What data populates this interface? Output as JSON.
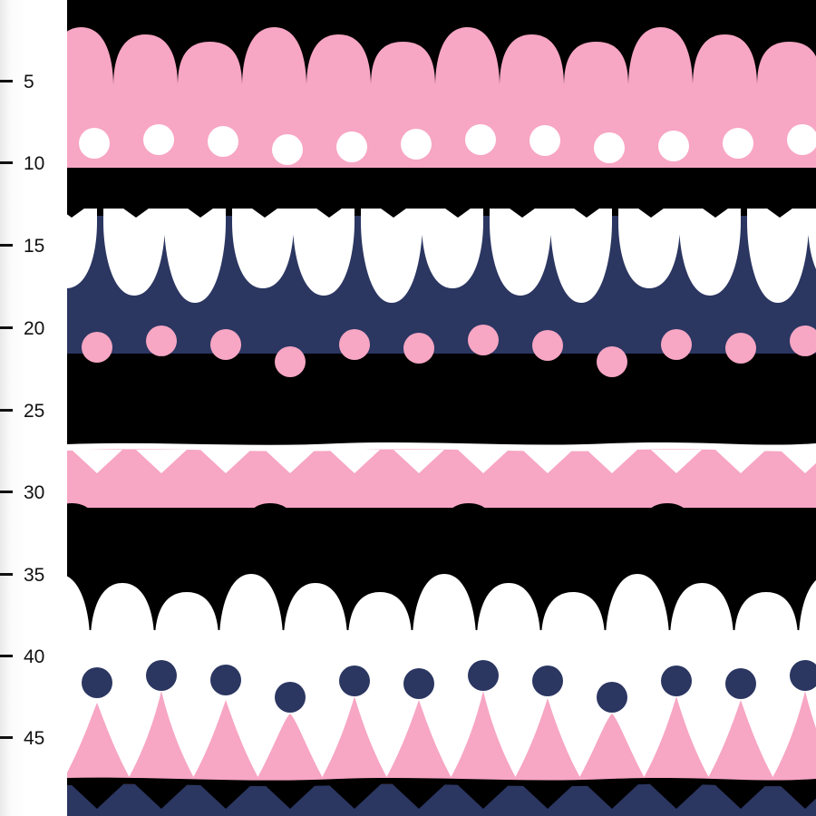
{
  "ruler": {
    "unit_labels": [
      "5",
      "10",
      "15",
      "20",
      "25",
      "30",
      "35",
      "40",
      "45"
    ]
  },
  "pattern": {
    "colors": {
      "pink": "#f7a6c3",
      "navy": "#2b3661",
      "black": "#000000",
      "white": "#ffffff"
    },
    "bands_top_to_bottom": [
      "pink-scallops-on-black",
      "white-dots-on-pink",
      "black-diamond-zigzag",
      "white-scallops-on-navy",
      "pink-dots-on-navy",
      "black-triangles",
      "white-wave-line",
      "pink-triangles-on-white",
      "black-scallops-on-pink",
      "white-scallops-on-black",
      "navy-dots-on-white",
      "pink-triangles-on-white",
      "black-wave-line",
      "black-zigzag-on-navy"
    ]
  }
}
